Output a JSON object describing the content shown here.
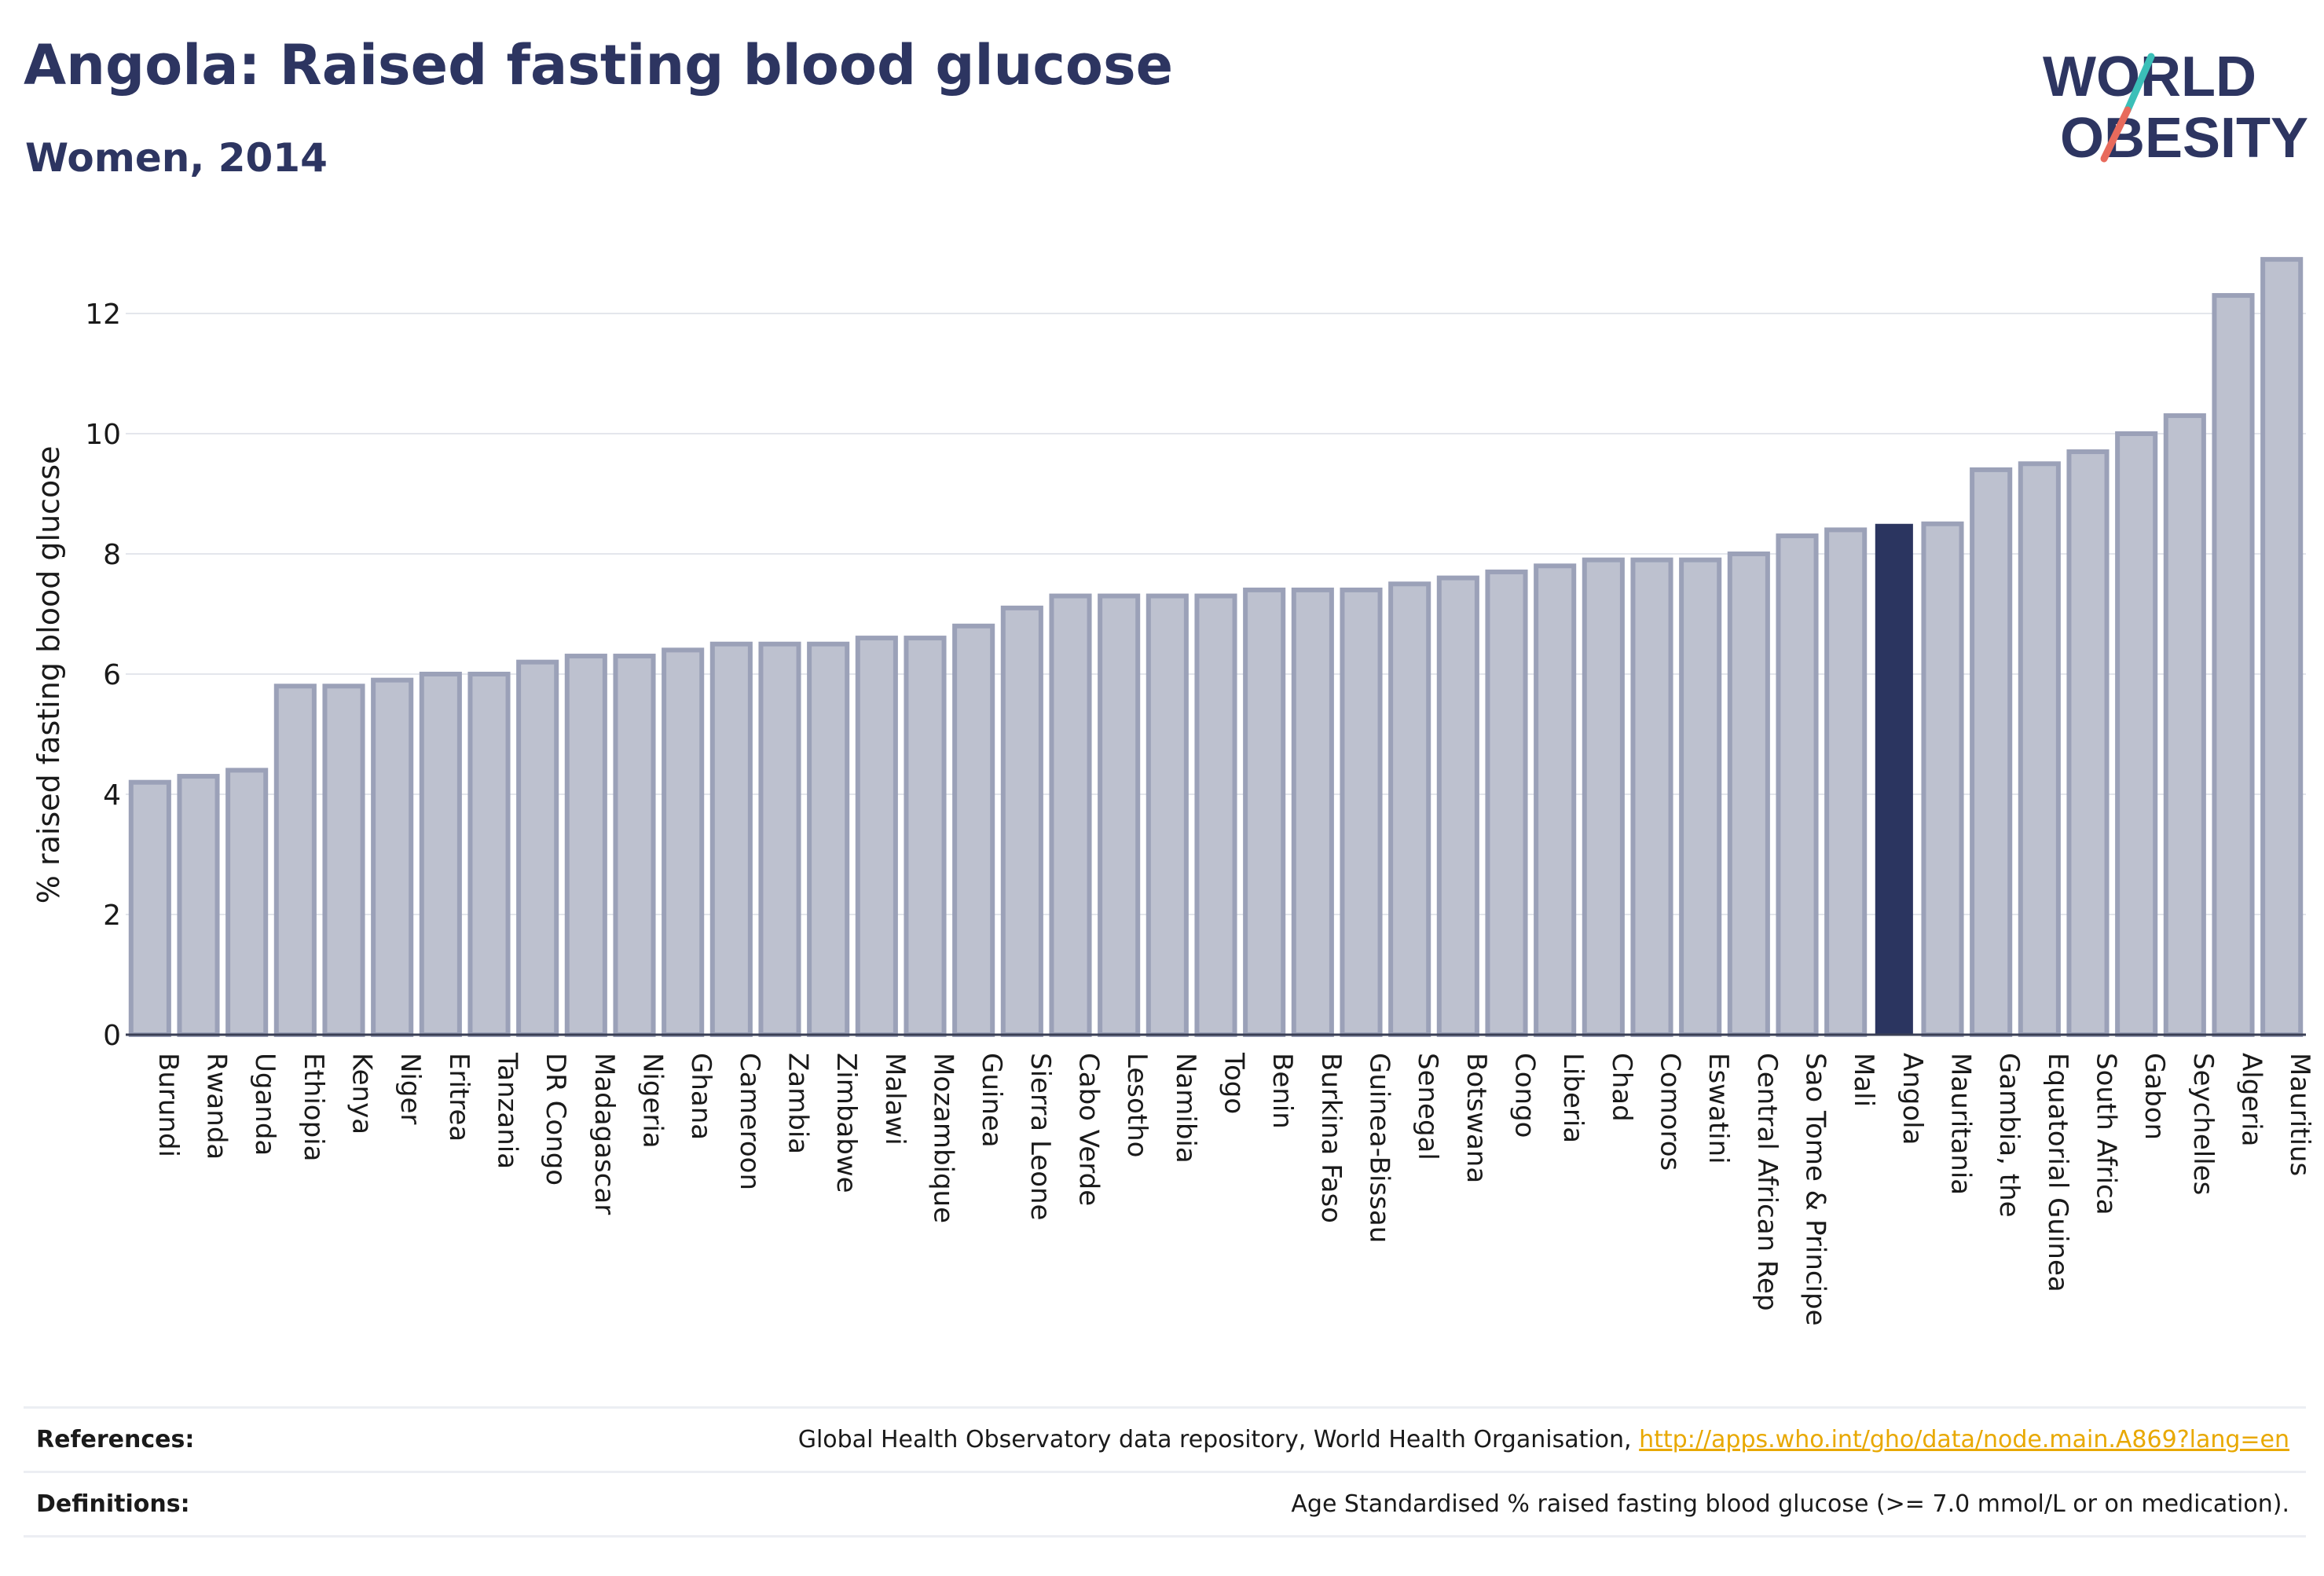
{
  "header": {
    "title": "Angola: Raised fasting blood glucose",
    "subtitle": "Women, 2014"
  },
  "logo": {
    "line1": "WORLD",
    "line2": "OBESITY"
  },
  "colors": {
    "highlight_bar": "#2b3560",
    "bar_fill": "#bdc1cf",
    "bar_stroke": "#9ba1b8",
    "text": "#2d3561",
    "link": "#e8a800",
    "logo_teal": "#3bbfb8",
    "logo_red": "#e86a5c"
  },
  "chart_data": {
    "type": "bar",
    "ylabel": "% raised fasting blood glucose",
    "xlabel": "",
    "ylim": [
      0,
      13
    ],
    "yticks": [
      0,
      2,
      4,
      6,
      8,
      10,
      12
    ],
    "grid": true,
    "highlight": "Angola",
    "categories": [
      "Burundi",
      "Rwanda",
      "Uganda",
      "Ethiopia",
      "Kenya",
      "Niger",
      "Eritrea",
      "Tanzania",
      "DR Congo",
      "Madagascar",
      "Nigeria",
      "Ghana",
      "Cameroon",
      "Zambia",
      "Zimbabwe",
      "Malawi",
      "Mozambique",
      "Guinea",
      "Sierra Leone",
      "Cabo Verde",
      "Lesotho",
      "Namibia",
      "Togo",
      "Benin",
      "Burkina Faso",
      "Guinea-Bissau",
      "Senegal",
      "Botswana",
      "Congo",
      "Liberia",
      "Chad",
      "Comoros",
      "Eswatini",
      "Central African Rep",
      "Sao Tome & Principe",
      "Mali",
      "Angola",
      "Mauritania",
      "Gambia, the",
      "Equatorial Guinea",
      "South Africa",
      "Gabon",
      "Seychelles",
      "Algeria",
      "Mauritius"
    ],
    "values": [
      4.2,
      4.3,
      4.4,
      5.8,
      5.8,
      5.9,
      6.0,
      6.0,
      6.2,
      6.3,
      6.3,
      6.4,
      6.5,
      6.5,
      6.5,
      6.6,
      6.6,
      6.8,
      7.1,
      7.3,
      7.3,
      7.3,
      7.3,
      7.4,
      7.4,
      7.4,
      7.5,
      7.6,
      7.7,
      7.8,
      7.9,
      7.9,
      7.9,
      8.0,
      8.3,
      8.4,
      8.5,
      8.5,
      9.4,
      9.5,
      9.7,
      10.0,
      10.3,
      12.3,
      12.9
    ]
  },
  "footer": {
    "references_label": "References:",
    "references_text": "Global Health Observatory data repository, World Health Organisation,",
    "references_link": "http://apps.who.int/gho/data/node.main.A869?lang=en",
    "definitions_label": "Definitions:",
    "definitions_text": "Age Standardised % raised fasting blood glucose (>= 7.0 mmol/L or on medication)."
  }
}
